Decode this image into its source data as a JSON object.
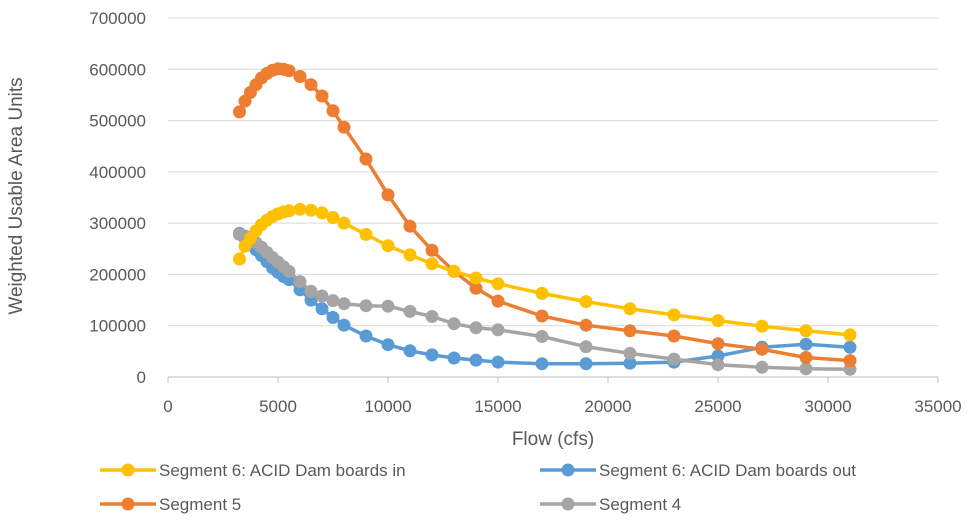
{
  "chart_data": {
    "type": "line",
    "xlabel": "Flow (cfs)",
    "ylabel": "Weighted Usable Area Units",
    "xlim": [
      0,
      35000
    ],
    "ylim": [
      0,
      700000
    ],
    "x_ticks": [
      "0",
      "5000",
      "10000",
      "15000",
      "20000",
      "25000",
      "30000",
      "35000"
    ],
    "y_ticks": [
      "0",
      "100000",
      "200000",
      "300000",
      "400000",
      "500000",
      "600000",
      "700000"
    ],
    "grid": "horizontal",
    "legend_position": "bottom",
    "series": [
      {
        "name": "Segment 6: ACID Dam boards in",
        "color": "#FFC000",
        "points": [
          [
            3250,
            230000
          ],
          [
            3500,
            255000
          ],
          [
            3750,
            270000
          ],
          [
            4000,
            285000
          ],
          [
            4250,
            297000
          ],
          [
            4500,
            306000
          ],
          [
            4750,
            313000
          ],
          [
            5000,
            318000
          ],
          [
            5250,
            322000
          ],
          [
            5500,
            324000
          ],
          [
            6000,
            327000
          ],
          [
            6500,
            325000
          ],
          [
            7000,
            320000
          ],
          [
            7500,
            311000
          ],
          [
            8000,
            300000
          ],
          [
            9000,
            278000
          ],
          [
            10000,
            256000
          ],
          [
            11000,
            238000
          ],
          [
            12000,
            221000
          ],
          [
            13000,
            206000
          ],
          [
            14000,
            193000
          ],
          [
            15000,
            182000
          ],
          [
            17000,
            163000
          ],
          [
            19000,
            147000
          ],
          [
            21000,
            133000
          ],
          [
            23000,
            121000
          ],
          [
            25000,
            110000
          ],
          [
            27000,
            99000
          ],
          [
            29000,
            90000
          ],
          [
            31000,
            82000
          ]
        ]
      },
      {
        "name": "Segment 6: ACID Dam boards out",
        "color": "#5B9BD5",
        "points": [
          [
            3250,
            280000
          ],
          [
            3500,
            270000
          ],
          [
            3750,
            260000
          ],
          [
            4000,
            248000
          ],
          [
            4250,
            237000
          ],
          [
            4500,
            225000
          ],
          [
            4750,
            213000
          ],
          [
            5000,
            204000
          ],
          [
            5250,
            196000
          ],
          [
            5500,
            190000
          ],
          [
            6000,
            170000
          ],
          [
            6500,
            150000
          ],
          [
            7000,
            133000
          ],
          [
            7500,
            116000
          ],
          [
            8000,
            101000
          ],
          [
            9000,
            80000
          ],
          [
            10000,
            63000
          ],
          [
            11000,
            51000
          ],
          [
            12000,
            43000
          ],
          [
            13000,
            37000
          ],
          [
            14000,
            33000
          ],
          [
            15000,
            29000
          ],
          [
            17000,
            26000
          ],
          [
            19000,
            26000
          ],
          [
            21000,
            27000
          ],
          [
            23000,
            29000
          ],
          [
            25000,
            41000
          ],
          [
            27000,
            58000
          ],
          [
            29000,
            64000
          ],
          [
            31000,
            58000
          ]
        ]
      },
      {
        "name": "Segment 5",
        "color": "#ED7D31",
        "points": [
          [
            3250,
            517000
          ],
          [
            3500,
            538000
          ],
          [
            3750,
            555000
          ],
          [
            4000,
            570000
          ],
          [
            4250,
            583000
          ],
          [
            4500,
            592000
          ],
          [
            4750,
            598000
          ],
          [
            5000,
            601000
          ],
          [
            5250,
            600000
          ],
          [
            5500,
            597000
          ],
          [
            6000,
            586000
          ],
          [
            6500,
            570000
          ],
          [
            7000,
            548000
          ],
          [
            7500,
            519000
          ],
          [
            8000,
            487000
          ],
          [
            9000,
            425000
          ],
          [
            10000,
            355000
          ],
          [
            11000,
            294000
          ],
          [
            12000,
            247000
          ],
          [
            13000,
            206000
          ],
          [
            14000,
            173000
          ],
          [
            15000,
            148000
          ],
          [
            17000,
            119000
          ],
          [
            19000,
            101000
          ],
          [
            21000,
            90000
          ],
          [
            23000,
            80000
          ],
          [
            25000,
            65000
          ],
          [
            27000,
            54000
          ],
          [
            29000,
            38000
          ],
          [
            31000,
            32000
          ]
        ]
      },
      {
        "name": "Segment 4",
        "color": "#A5A5A5",
        "points": [
          [
            3250,
            278000
          ],
          [
            3500,
            275000
          ],
          [
            3750,
            270000
          ],
          [
            4000,
            262000
          ],
          [
            4250,
            253000
          ],
          [
            4500,
            243000
          ],
          [
            4750,
            233000
          ],
          [
            5000,
            224000
          ],
          [
            5250,
            215000
          ],
          [
            5500,
            206000
          ],
          [
            6000,
            186000
          ],
          [
            6500,
            167000
          ],
          [
            7000,
            158000
          ],
          [
            7500,
            149000
          ],
          [
            8000,
            143000
          ],
          [
            9000,
            139000
          ],
          [
            10000,
            138000
          ],
          [
            11000,
            128000
          ],
          [
            12000,
            118000
          ],
          [
            13000,
            104000
          ],
          [
            14000,
            96000
          ],
          [
            15000,
            92000
          ],
          [
            17000,
            79000
          ],
          [
            19000,
            59000
          ],
          [
            21000,
            46000
          ],
          [
            23000,
            35000
          ],
          [
            25000,
            24000
          ],
          [
            27000,
            19000
          ],
          [
            29000,
            16000
          ],
          [
            31000,
            15000
          ]
        ]
      }
    ]
  }
}
